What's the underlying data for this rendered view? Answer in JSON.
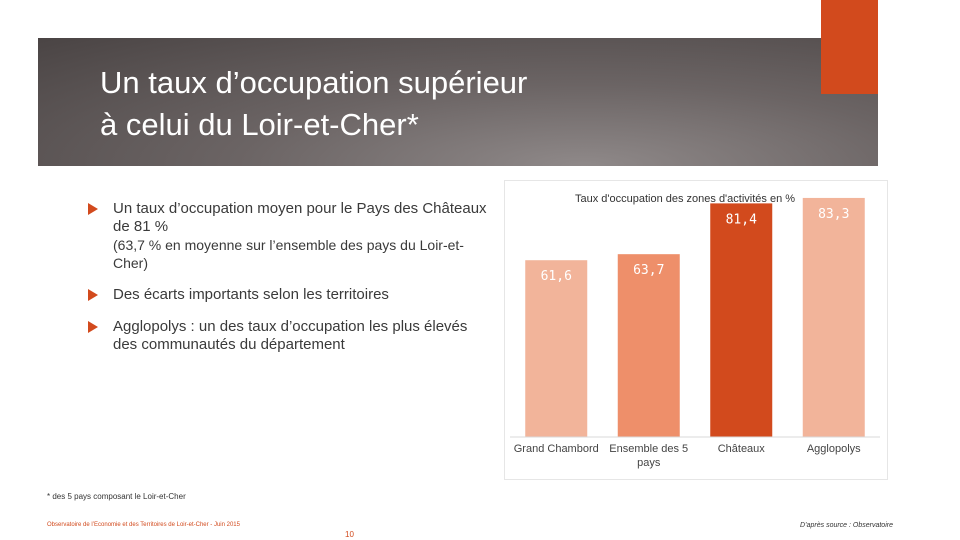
{
  "slide": {
    "title": "Un taux d’occupation supérieur\nà celui du Loir-et-Cher*",
    "bullets": [
      {
        "text": "Un taux d’occupation moyen pour le Pays des Châteaux de 81 %",
        "sub": "(63,7 % en moyenne sur l’ensemble des pays du Loir-et-Cher)"
      },
      {
        "text": "Des écarts importants selon les territoires",
        "sub": ""
      },
      {
        "text": "Agglopolys : un des taux d’occupation les plus élevés des communautés du département",
        "sub": ""
      }
    ],
    "footnote": "* des 5 pays composant le Loir-et-Cher",
    "footer_left": "Observatoire de l’Economie et des Territoires de Loir-et-Cher - Juin 2015",
    "page_number": "10",
    "footer_right": "D’après source : Observatoire"
  },
  "colors": {
    "accent": "#d24a1d",
    "bar_light": "#f2b49a",
    "bar_medium": "#ee8f6a",
    "bar_dark": "#d24a1d"
  },
  "chart_data": {
    "type": "bar",
    "title": "Taux d'occupation des zones d'activités en %",
    "categories": [
      "Grand Chambord",
      "Ensemble des 5 pays",
      "Châteaux",
      "Agglopolys"
    ],
    "values": [
      61.6,
      63.7,
      81.4,
      83.3
    ],
    "value_labels": [
      "61,6",
      "63,7",
      "81,4",
      "83,3"
    ],
    "bar_colors": [
      "#f2b49a",
      "#ee8f6a",
      "#d24a1d",
      "#f2b49a"
    ],
    "ylim": [
      0,
      100
    ],
    "grid": false
  }
}
